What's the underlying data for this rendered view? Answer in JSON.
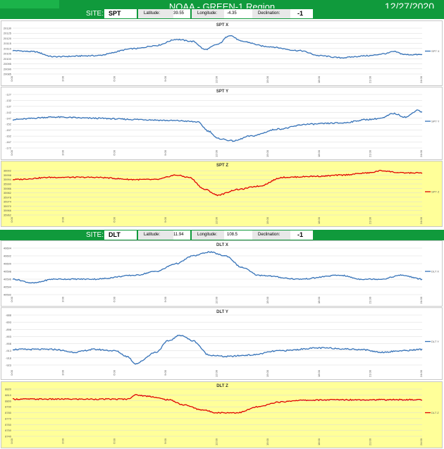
{
  "header": {
    "title": "NOAA - GREEN-1 Region",
    "date": "12/27/2020"
  },
  "sites": [
    {
      "site_label": "SITE:",
      "site": "SPT",
      "lat_label": "Latitude:",
      "lat": "39.55",
      "lon_label": "Longitude:",
      "lon": "-4.35",
      "dec_label": "Declination:",
      "dec": "-1"
    },
    {
      "site_label": "SITE:",
      "site": "DLT",
      "lat_label": "Latitude:",
      "lat": "11.94",
      "lon_label": "Longitude:",
      "lon": "108.5",
      "dec_label": "Declination:",
      "dec": "-1"
    }
  ],
  "chart_data": [
    {
      "type": "line",
      "title": "SPT X",
      "series": [
        {
          "name": "SPT X",
          "color": "#3572b8"
        }
      ],
      "ylim": [
        20085,
        20130
      ],
      "yticks": [
        20085,
        20090,
        20095,
        20100,
        20105,
        20110,
        20115,
        20120,
        20125,
        20130
      ],
      "x": [
        "0:00",
        "3:00",
        "6:00",
        "9:00",
        "12:00",
        "15:00",
        "18:00",
        "21:00",
        "24:00"
      ],
      "key": [
        [
          0,
          20108
        ],
        [
          0.05,
          20107
        ],
        [
          0.1,
          20102
        ],
        [
          0.2,
          20103
        ],
        [
          0.3,
          20110
        ],
        [
          0.35,
          20113
        ],
        [
          0.4,
          20119
        ],
        [
          0.44,
          20117
        ],
        [
          0.47,
          20109
        ],
        [
          0.5,
          20114
        ],
        [
          0.53,
          20123
        ],
        [
          0.56,
          20117
        ],
        [
          0.62,
          20112
        ],
        [
          0.7,
          20108
        ],
        [
          0.75,
          20103
        ],
        [
          0.8,
          20101
        ],
        [
          0.87,
          20103
        ],
        [
          0.91,
          20105
        ],
        [
          0.93,
          20107
        ],
        [
          0.96,
          20104
        ]
      ]
    },
    {
      "type": "line",
      "title": "SPT Y",
      "series": [
        {
          "name": "SPT Y",
          "color": "#3572b8"
        }
      ],
      "ylim": [
        -172,
        -127
      ],
      "yticks": [
        -127,
        -132,
        -137,
        -142,
        -147,
        -152,
        -157,
        -162,
        -167,
        -172
      ],
      "x": [
        "0:00",
        "3:00",
        "6:00",
        "9:00",
        "12:00",
        "15:00",
        "18:00",
        "21:00",
        "24:00"
      ],
      "key": [
        [
          0,
          -148
        ],
        [
          0.1,
          -146
        ],
        [
          0.2,
          -147
        ],
        [
          0.3,
          -148
        ],
        [
          0.4,
          -149
        ],
        [
          0.45,
          -150
        ],
        [
          0.48,
          -158
        ],
        [
          0.5,
          -164
        ],
        [
          0.54,
          -166
        ],
        [
          0.58,
          -162
        ],
        [
          0.65,
          -156
        ],
        [
          0.72,
          -152
        ],
        [
          0.8,
          -151
        ],
        [
          0.87,
          -148
        ],
        [
          0.9,
          -147
        ],
        [
          0.93,
          -143
        ],
        [
          0.96,
          -146
        ],
        [
          0.99,
          -140
        ],
        [
          1,
          -142
        ]
      ]
    },
    {
      "type": "line",
      "title": "SPT Z",
      "series": [
        {
          "name": "SPT Z",
          "color": "#e00000"
        }
      ],
      "ylim": [
        35962,
        36004
      ],
      "yticks": [
        35962,
        35966,
        35970,
        35974,
        35978,
        35982,
        35986,
        35990,
        35994,
        35998,
        36002
      ],
      "x": [
        "0:00",
        "3:00",
        "6:00",
        "9:00",
        "12:00",
        "15:00",
        "18:00",
        "21:00",
        "24:00"
      ],
      "key": [
        [
          0,
          35994
        ],
        [
          0.1,
          35996
        ],
        [
          0.2,
          35996
        ],
        [
          0.3,
          35994
        ],
        [
          0.35,
          35994
        ],
        [
          0.4,
          35998
        ],
        [
          0.43,
          35996
        ],
        [
          0.47,
          35985
        ],
        [
          0.5,
          35980
        ],
        [
          0.55,
          35985
        ],
        [
          0.6,
          35988
        ],
        [
          0.66,
          35996
        ],
        [
          0.75,
          35997
        ],
        [
          0.8,
          35998
        ],
        [
          0.87,
          36000
        ],
        [
          0.9,
          36002
        ],
        [
          0.95,
          36000
        ],
        [
          1,
          36000
        ]
      ]
    },
    {
      "type": "line",
      "title": "DLT X",
      "series": [
        {
          "name": "DLT X",
          "color": "#3572b8"
        }
      ],
      "ylim": [
        40592,
        40604
      ],
      "yticks": [
        40592,
        40594,
        40596,
        40598,
        40600,
        40602,
        40604
      ],
      "x": [
        "0:00",
        "3:00",
        "6:00",
        "9:00",
        "12:00",
        "15:00",
        "18:00",
        "21:00",
        "24:00"
      ],
      "key": [
        [
          0,
          40596
        ],
        [
          0.05,
          40595
        ],
        [
          0.1,
          40596
        ],
        [
          0.2,
          40596
        ],
        [
          0.3,
          40597
        ],
        [
          0.35,
          40598
        ],
        [
          0.4,
          40600
        ],
        [
          0.44,
          40602
        ],
        [
          0.48,
          40603
        ],
        [
          0.52,
          40602
        ],
        [
          0.56,
          40599
        ],
        [
          0.6,
          40597
        ],
        [
          0.7,
          40596
        ],
        [
          0.8,
          40597
        ],
        [
          0.85,
          40596
        ],
        [
          0.9,
          40596
        ],
        [
          0.95,
          40597
        ],
        [
          1,
          40596
        ]
      ]
    },
    {
      "type": "line",
      "title": "DLT Y",
      "series": [
        {
          "name": "DLT Y",
          "color": "#3572b8"
        }
      ],
      "ylim": [
        -925,
        -888
      ],
      "yticks": [
        -888,
        -893,
        -898,
        -903,
        -908,
        -913,
        -918,
        -923
      ],
      "x": [
        "0:00",
        "3:00",
        "6:00",
        "9:00",
        "12:00",
        "15:00",
        "18:00",
        "21:00",
        "24:00"
      ],
      "key": [
        [
          0,
          -912
        ],
        [
          0.1,
          -912
        ],
        [
          0.15,
          -914
        ],
        [
          0.2,
          -912
        ],
        [
          0.25,
          -913
        ],
        [
          0.28,
          -917
        ],
        [
          0.3,
          -922
        ],
        [
          0.35,
          -914
        ],
        [
          0.38,
          -906
        ],
        [
          0.41,
          -902
        ],
        [
          0.44,
          -906
        ],
        [
          0.48,
          -916
        ],
        [
          0.52,
          -917
        ],
        [
          0.58,
          -916
        ],
        [
          0.65,
          -913
        ],
        [
          0.75,
          -911
        ],
        [
          0.85,
          -912
        ],
        [
          0.9,
          -914
        ],
        [
          0.95,
          -913
        ],
        [
          1,
          -912
        ]
      ]
    },
    {
      "type": "line",
      "title": "DLT Z",
      "series": [
        {
          "name": "DLT Z",
          "color": "#e00000"
        }
      ],
      "ylim": [
        8740,
        8820
      ],
      "yticks": [
        8740,
        8750,
        8760,
        8770,
        8780,
        8790,
        8800,
        8810,
        8820
      ],
      "x": [
        "0:00",
        "3:00",
        "6:00",
        "9:00",
        "12:00",
        "15:00",
        "18:00",
        "21:00",
        "24:00"
      ],
      "key": [
        [
          0,
          8803
        ],
        [
          0.1,
          8803
        ],
        [
          0.2,
          8803
        ],
        [
          0.28,
          8803
        ],
        [
          0.3,
          8810
        ],
        [
          0.33,
          8808
        ],
        [
          0.38,
          8802
        ],
        [
          0.42,
          8793
        ],
        [
          0.46,
          8785
        ],
        [
          0.5,
          8780
        ],
        [
          0.55,
          8780
        ],
        [
          0.6,
          8790
        ],
        [
          0.65,
          8798
        ],
        [
          0.7,
          8801
        ],
        [
          0.8,
          8802
        ],
        [
          0.9,
          8802
        ],
        [
          1,
          8802
        ]
      ]
    }
  ]
}
